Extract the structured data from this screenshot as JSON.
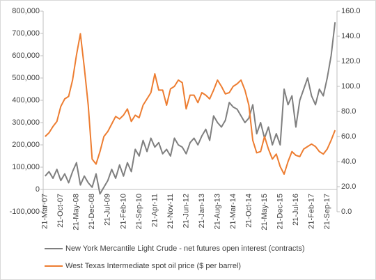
{
  "chart_data": {
    "type": "line",
    "categories": [
      "21-Mar-07",
      null,
      null,
      null,
      "21-Oct-07",
      null,
      null,
      null,
      "21-May-08",
      null,
      null,
      null,
      "21-Dec-08",
      null,
      null,
      null,
      "21-Jul-09",
      null,
      null,
      null,
      "21-Feb-10",
      null,
      null,
      null,
      "21-Sep-10",
      null,
      null,
      null,
      "21-Apr-11",
      null,
      null,
      null,
      "21-Nov-11",
      null,
      null,
      null,
      "21-Jun-12",
      null,
      null,
      null,
      "21-Jan-13",
      null,
      null,
      null,
      "21-Aug-13",
      null,
      null,
      null,
      "21-Mar-14",
      null,
      null,
      null,
      "21-Oct-14",
      null,
      null,
      null,
      "21-May-15",
      null,
      null,
      null,
      "21-Dec-15",
      null,
      null,
      null,
      "21-Jul-16",
      null,
      null,
      null,
      "21-Feb-17",
      null,
      null,
      null,
      "21-Sep-17",
      null,
      null
    ],
    "series": [
      {
        "name": "New York Mercantile Light Crude - net futures open interest (contracts)",
        "color": "#7f7f7f",
        "axis": "y",
        "values": [
          60000,
          80000,
          50000,
          90000,
          40000,
          70000,
          30000,
          80000,
          120000,
          20000,
          60000,
          30000,
          10000,
          70000,
          -20000,
          10000,
          40000,
          90000,
          50000,
          110000,
          60000,
          120000,
          80000,
          180000,
          150000,
          220000,
          170000,
          230000,
          190000,
          210000,
          160000,
          180000,
          150000,
          230000,
          200000,
          190000,
          160000,
          210000,
          230000,
          200000,
          240000,
          270000,
          220000,
          330000,
          300000,
          280000,
          310000,
          390000,
          370000,
          360000,
          330000,
          300000,
          320000,
          380000,
          250000,
          300000,
          230000,
          280000,
          200000,
          250000,
          200000,
          450000,
          380000,
          420000,
          280000,
          400000,
          450000,
          500000,
          420000,
          380000,
          450000,
          420000,
          500000,
          600000,
          750000
        ]
      },
      {
        "name": "West Texas Intermediate spot oil price ($ per barrel)",
        "color": "#ed7d31",
        "axis": "y2",
        "values": [
          60,
          63,
          68,
          72,
          84,
          90,
          92,
          105,
          125,
          142,
          115,
          85,
          42,
          38,
          48,
          60,
          64,
          70,
          76,
          74,
          77,
          82,
          72,
          77,
          75,
          85,
          90,
          95,
          110,
          97,
          97,
          85,
          98,
          100,
          105,
          103,
          82,
          93,
          93,
          87,
          95,
          93,
          90,
          97,
          105,
          100,
          94,
          95,
          100,
          102,
          105,
          97,
          85,
          57,
          47,
          48,
          60,
          50,
          42,
          46,
          36,
          30,
          40,
          48,
          45,
          44,
          50,
          52,
          54,
          52,
          48,
          46,
          50,
          57,
          65
        ]
      }
    ],
    "ylim": [
      -100000,
      800000
    ],
    "yticks": [
      {
        "value": -100000,
        "label": "-100,000"
      },
      0,
      {
        "value": 100000,
        "label": "100,000"
      },
      {
        "value": 200000,
        "label": "200,000"
      },
      {
        "value": 300000,
        "label": "300,000"
      },
      {
        "value": 400000,
        "label": "400,000"
      },
      {
        "value": 500000,
        "label": "500,000"
      },
      {
        "value": 600000,
        "label": "600,000"
      },
      {
        "value": 700000,
        "label": "700,000"
      },
      {
        "value": 800000,
        "label": "800,000"
      }
    ],
    "y2lim": [
      0,
      160
    ],
    "y2ticks": [
      {
        "value": 0,
        "label": "0.0"
      },
      {
        "value": 20,
        "label": "20.0"
      },
      {
        "value": 40,
        "label": "40.0"
      },
      {
        "value": 60,
        "label": "60.0"
      },
      {
        "value": 80,
        "label": "80.0"
      },
      {
        "value": 100,
        "label": "100.0"
      },
      {
        "value": 120,
        "label": "120.0"
      },
      {
        "value": 140,
        "label": "140.0"
      },
      {
        "value": 160,
        "label": "160.0"
      }
    ],
    "grid": false,
    "legend": "bottom"
  }
}
